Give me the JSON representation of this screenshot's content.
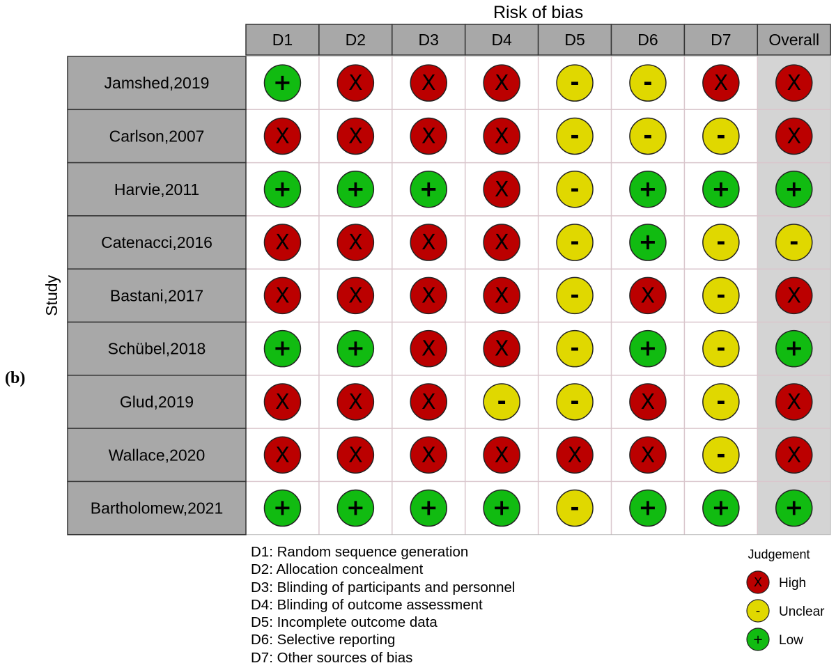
{
  "figure_label": "(b)",
  "chart_data": {
    "type": "table",
    "title": "Risk of bias",
    "row_axis_label": "Study",
    "columns": [
      "D1",
      "D2",
      "D3",
      "D4",
      "D5",
      "D6",
      "D7",
      "Overall"
    ],
    "studies": [
      {
        "name": "Jamshed,2019",
        "judgements": [
          "Low",
          "High",
          "High",
          "High",
          "Unclear",
          "Unclear",
          "High",
          "High"
        ]
      },
      {
        "name": "Carlson,2007",
        "judgements": [
          "High",
          "High",
          "High",
          "High",
          "Unclear",
          "Unclear",
          "Unclear",
          "High"
        ]
      },
      {
        "name": "Harvie,2011",
        "judgements": [
          "Low",
          "Low",
          "Low",
          "High",
          "Unclear",
          "Low",
          "Low",
          "Low"
        ]
      },
      {
        "name": "Catenacci,2016",
        "judgements": [
          "High",
          "High",
          "High",
          "High",
          "Unclear",
          "Low",
          "Unclear",
          "Unclear"
        ]
      },
      {
        "name": "Bastani,2017",
        "judgements": [
          "High",
          "High",
          "High",
          "High",
          "Unclear",
          "High",
          "Unclear",
          "High"
        ]
      },
      {
        "name": "Schübel,2018",
        "judgements": [
          "Low",
          "Low",
          "High",
          "High",
          "Unclear",
          "Low",
          "Unclear",
          "Low"
        ]
      },
      {
        "name": "Glud,2019",
        "judgements": [
          "High",
          "High",
          "High",
          "Unclear",
          "Unclear",
          "High",
          "Unclear",
          "High"
        ]
      },
      {
        "name": "Wallace,2020",
        "judgements": [
          "High",
          "High",
          "High",
          "High",
          "High",
          "High",
          "Unclear",
          "High"
        ]
      },
      {
        "name": "Bartholomew,2021",
        "judgements": [
          "Low",
          "Low",
          "Low",
          "Low",
          "Unclear",
          "Low",
          "Low",
          "Low"
        ]
      }
    ],
    "domain_definitions": [
      "D1: Random sequence generation",
      "D2: Allocation concealment",
      "D3: Blinding of participants and personnel",
      "D4: Blinding of outcome assessment",
      "D5: Incomplete outcome data",
      "D6: Selective reporting",
      "D7: Other sources of bias"
    ],
    "legend": {
      "title": "Judgement",
      "items": [
        {
          "label": "High",
          "symbol": "X",
          "color": "#bb0000"
        },
        {
          "label": "Unclear",
          "symbol": "-",
          "color": "#e0d800"
        },
        {
          "label": "Low",
          "symbol": "+",
          "color": "#11bb11"
        }
      ]
    },
    "colors": {
      "header_bg": "#a8a8a8",
      "study_bg": "#a8a8a8",
      "overall_bg": "#d4d4d4",
      "cell_bg": "#ffffff"
    }
  }
}
